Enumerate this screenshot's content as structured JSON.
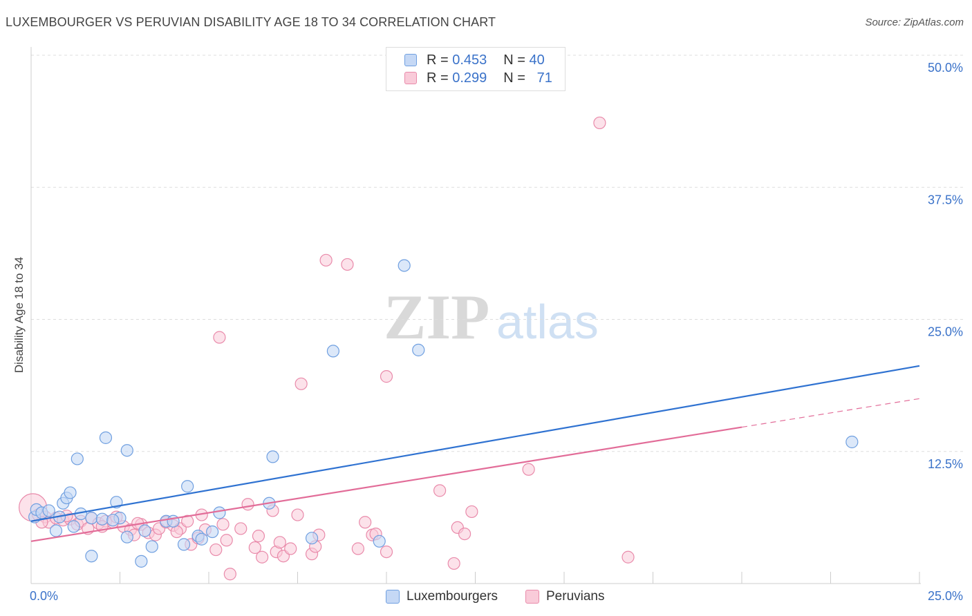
{
  "title": "LUXEMBOURGER VS PERUVIAN DISABILITY AGE 18 TO 34 CORRELATION CHART",
  "source": "Source: ZipAtlas.com",
  "legend": {
    "r_label": "R =",
    "n_label": "N =",
    "rows": [
      {
        "r": "0.453",
        "n": "40"
      },
      {
        "r": "0.299",
        "n": "71"
      }
    ]
  },
  "bottom_legend": [
    "Luxembourgers",
    "Peruvians"
  ],
  "colors": {
    "blue_fill": "#c5d8f5",
    "blue_stroke": "#6f9fe0",
    "blue_line": "#2f72d1",
    "pink_fill": "#f9cbd9",
    "pink_stroke": "#e98aaa",
    "pink_line": "#e26c98",
    "axis_text": "#3a72c9",
    "grid": "#dddddd"
  },
  "watermark": {
    "zip": "ZIP",
    "atlas": "atlas"
  },
  "chart_data": {
    "type": "scatter",
    "title": "LUXEMBOURGER VS PERUVIAN DISABILITY AGE 18 TO 34 CORRELATION CHART",
    "xlabel": "",
    "ylabel": "Disability Age 18 to 34",
    "xlim": [
      0,
      25
    ],
    "ylim": [
      0,
      50
    ],
    "x_tick_labels": [
      "0.0%",
      "25.0%"
    ],
    "y_ticks": [
      12.5,
      25,
      37.5,
      50
    ],
    "y_tick_labels": [
      "12.5%",
      "25.0%",
      "37.5%",
      "50.0%"
    ],
    "grid": true,
    "legend_position": "top-center",
    "series": [
      {
        "name": "Luxembourgers",
        "r": 0.453,
        "n": 40,
        "trend": {
          "x": [
            0,
            25
          ],
          "y": [
            5.9,
            20.6
          ]
        },
        "points": [
          [
            0.1,
            6.3
          ],
          [
            0.15,
            7.0
          ],
          [
            0.3,
            6.7
          ],
          [
            0.5,
            6.9
          ],
          [
            0.8,
            6.3
          ],
          [
            0.9,
            7.6
          ],
          [
            1.0,
            8.1
          ],
          [
            1.1,
            8.6
          ],
          [
            1.3,
            11.8
          ],
          [
            1.2,
            5.4
          ],
          [
            1.4,
            6.6
          ],
          [
            1.7,
            6.2
          ],
          [
            2.1,
            13.8
          ],
          [
            2.0,
            6.1
          ],
          [
            2.4,
            7.7
          ],
          [
            2.5,
            6.2
          ],
          [
            2.7,
            12.6
          ],
          [
            2.7,
            4.4
          ],
          [
            3.2,
            5.0
          ],
          [
            3.1,
            2.1
          ],
          [
            3.4,
            3.5
          ],
          [
            3.8,
            5.9
          ],
          [
            4.0,
            5.9
          ],
          [
            4.3,
            3.7
          ],
          [
            4.4,
            9.2
          ],
          [
            4.7,
            4.5
          ],
          [
            4.8,
            4.2
          ],
          [
            5.1,
            4.9
          ],
          [
            5.3,
            6.7
          ],
          [
            6.8,
            12.0
          ],
          [
            6.7,
            7.6
          ],
          [
            7.9,
            4.3
          ],
          [
            8.5,
            22.0
          ],
          [
            9.8,
            4.0
          ],
          [
            10.5,
            30.1
          ],
          [
            10.9,
            22.1
          ],
          [
            23.1,
            13.4
          ],
          [
            1.7,
            2.6
          ],
          [
            0.7,
            5.0
          ],
          [
            2.3,
            6.0
          ]
        ]
      },
      {
        "name": "Peruvians",
        "r": 0.299,
        "n": 71,
        "trend": {
          "x": [
            0,
            25
          ],
          "y": [
            4.0,
            17.5
          ]
        },
        "trend_solid_until_x": 20,
        "points": [
          [
            0.05,
            7.2
          ],
          [
            0.2,
            6.5
          ],
          [
            0.4,
            6.3
          ],
          [
            0.5,
            5.8
          ],
          [
            0.7,
            6.2
          ],
          [
            0.9,
            6.0
          ],
          [
            1.1,
            6.1
          ],
          [
            1.3,
            5.6
          ],
          [
            1.4,
            5.9
          ],
          [
            1.6,
            5.2
          ],
          [
            1.7,
            6.2
          ],
          [
            1.9,
            5.7
          ],
          [
            2.1,
            5.9
          ],
          [
            2.3,
            5.8
          ],
          [
            2.4,
            6.3
          ],
          [
            2.6,
            5.4
          ],
          [
            2.8,
            5.1
          ],
          [
            2.9,
            4.6
          ],
          [
            3.1,
            5.6
          ],
          [
            3.3,
            4.8
          ],
          [
            3.5,
            4.6
          ],
          [
            3.6,
            5.2
          ],
          [
            3.8,
            5.8
          ],
          [
            4.0,
            5.5
          ],
          [
            4.2,
            5.2
          ],
          [
            4.4,
            5.9
          ],
          [
            4.5,
            3.7
          ],
          [
            4.7,
            4.3
          ],
          [
            4.8,
            6.5
          ],
          [
            4.9,
            5.1
          ],
          [
            5.2,
            3.2
          ],
          [
            5.4,
            5.6
          ],
          [
            5.5,
            4.1
          ],
          [
            5.3,
            23.3
          ],
          [
            5.6,
            0.9
          ],
          [
            5.9,
            5.2
          ],
          [
            6.1,
            7.5
          ],
          [
            6.3,
            3.4
          ],
          [
            6.4,
            4.5
          ],
          [
            6.5,
            2.5
          ],
          [
            6.8,
            6.9
          ],
          [
            6.9,
            3.0
          ],
          [
            7.0,
            3.9
          ],
          [
            7.1,
            2.6
          ],
          [
            7.3,
            3.3
          ],
          [
            7.5,
            6.5
          ],
          [
            7.6,
            18.9
          ],
          [
            7.9,
            2.8
          ],
          [
            8.0,
            3.5
          ],
          [
            8.1,
            4.6
          ],
          [
            8.3,
            30.6
          ],
          [
            8.9,
            30.2
          ],
          [
            9.2,
            3.3
          ],
          [
            9.4,
            5.8
          ],
          [
            9.6,
            4.6
          ],
          [
            9.7,
            4.7
          ],
          [
            10.0,
            19.6
          ],
          [
            10.0,
            3.0
          ],
          [
            11.5,
            8.8
          ],
          [
            11.9,
            1.9
          ],
          [
            12.0,
            5.3
          ],
          [
            12.2,
            4.7
          ],
          [
            12.4,
            6.8
          ],
          [
            14.0,
            10.8
          ],
          [
            16.0,
            43.6
          ],
          [
            16.8,
            2.5
          ],
          [
            0.3,
            5.8
          ],
          [
            1.0,
            6.4
          ],
          [
            2.0,
            5.4
          ],
          [
            3.0,
            5.7
          ],
          [
            4.1,
            4.9
          ]
        ]
      }
    ]
  }
}
